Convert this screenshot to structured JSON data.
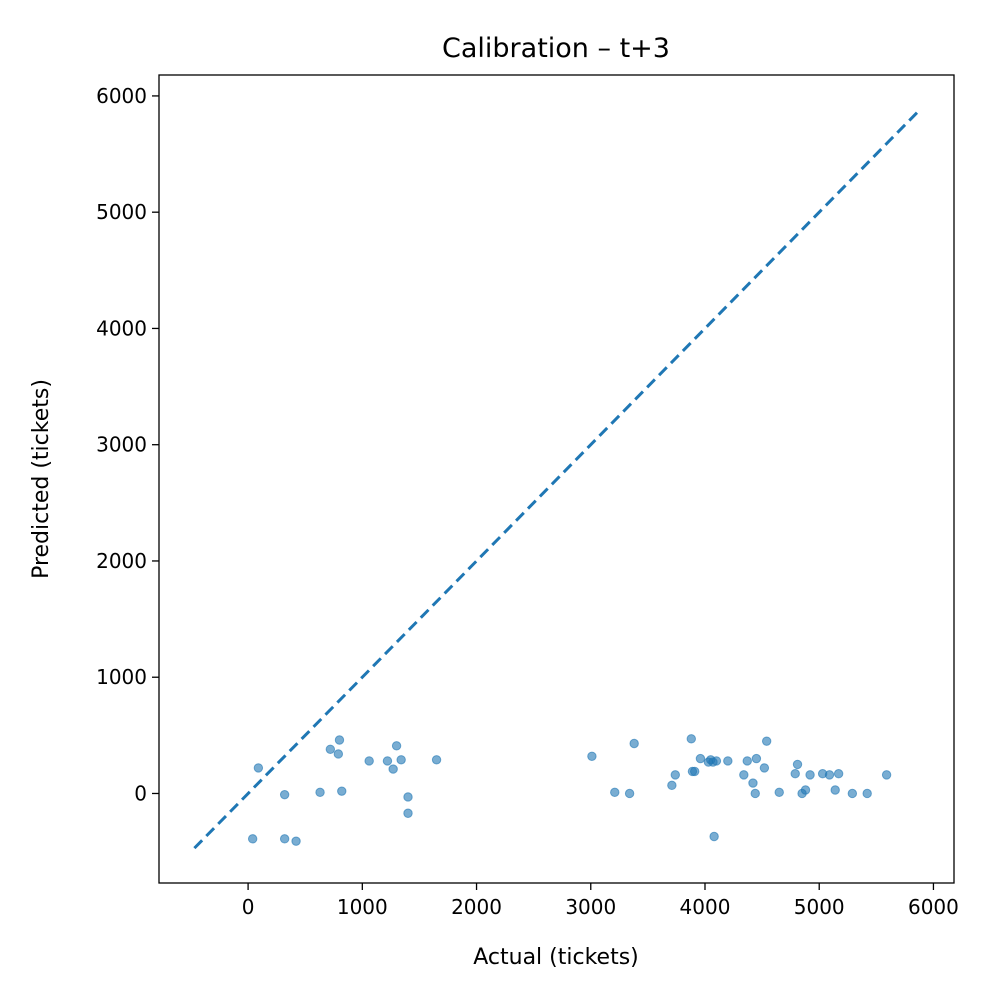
{
  "chart_data": {
    "type": "scatter",
    "title": "Calibration – t+3",
    "xlabel": "Actual (tickets)",
    "ylabel": "Predicted (tickets)",
    "xlim": [
      -780,
      6180
    ],
    "ylim": [
      -770,
      6180
    ],
    "x_ticks": [
      0,
      1000,
      2000,
      3000,
      4000,
      5000,
      6000
    ],
    "x_tick_labels": [
      "0",
      "1000",
      "2000",
      "3000",
      "4000",
      "5000",
      "6000"
    ],
    "y_ticks": [
      0,
      1000,
      2000,
      3000,
      4000,
      5000,
      6000
    ],
    "y_tick_labels": [
      "0",
      "1000",
      "2000",
      "3000",
      "4000",
      "5000",
      "6000"
    ],
    "grid": false,
    "reference_line": {
      "style": "dashed",
      "color": "#1f77b4",
      "from": [
        -470,
        -470
      ],
      "to": [
        5870,
        5870
      ]
    },
    "series": [
      {
        "color": "#1f77b4",
        "points": [
          [
            40,
            -390
          ],
          [
            90,
            220
          ],
          [
            320,
            -10
          ],
          [
            320,
            -390
          ],
          [
            420,
            -410
          ],
          [
            630,
            10
          ],
          [
            720,
            380
          ],
          [
            790,
            340
          ],
          [
            800,
            460
          ],
          [
            820,
            20
          ],
          [
            1060,
            280
          ],
          [
            1220,
            280
          ],
          [
            1270,
            210
          ],
          [
            1300,
            410
          ],
          [
            1340,
            290
          ],
          [
            1400,
            -30
          ],
          [
            1400,
            -170
          ],
          [
            1650,
            290
          ],
          [
            3010,
            320
          ],
          [
            3210,
            10
          ],
          [
            3340,
            0
          ],
          [
            3380,
            430
          ],
          [
            3710,
            70
          ],
          [
            3740,
            160
          ],
          [
            3880,
            470
          ],
          [
            3890,
            190
          ],
          [
            3910,
            190
          ],
          [
            3960,
            300
          ],
          [
            4030,
            270
          ],
          [
            4050,
            290
          ],
          [
            4070,
            270
          ],
          [
            4080,
            -370
          ],
          [
            4100,
            280
          ],
          [
            4200,
            280
          ],
          [
            4340,
            160
          ],
          [
            4370,
            280
          ],
          [
            4420,
            90
          ],
          [
            4440,
            0
          ],
          [
            4450,
            300
          ],
          [
            4520,
            220
          ],
          [
            4540,
            450
          ],
          [
            4650,
            10
          ],
          [
            4790,
            170
          ],
          [
            4810,
            250
          ],
          [
            4850,
            0
          ],
          [
            4880,
            30
          ],
          [
            4920,
            160
          ],
          [
            5030,
            170
          ],
          [
            5090,
            160
          ],
          [
            5140,
            30
          ],
          [
            5170,
            170
          ],
          [
            5290,
            0
          ],
          [
            5420,
            0
          ],
          [
            5590,
            160
          ]
        ]
      }
    ]
  }
}
